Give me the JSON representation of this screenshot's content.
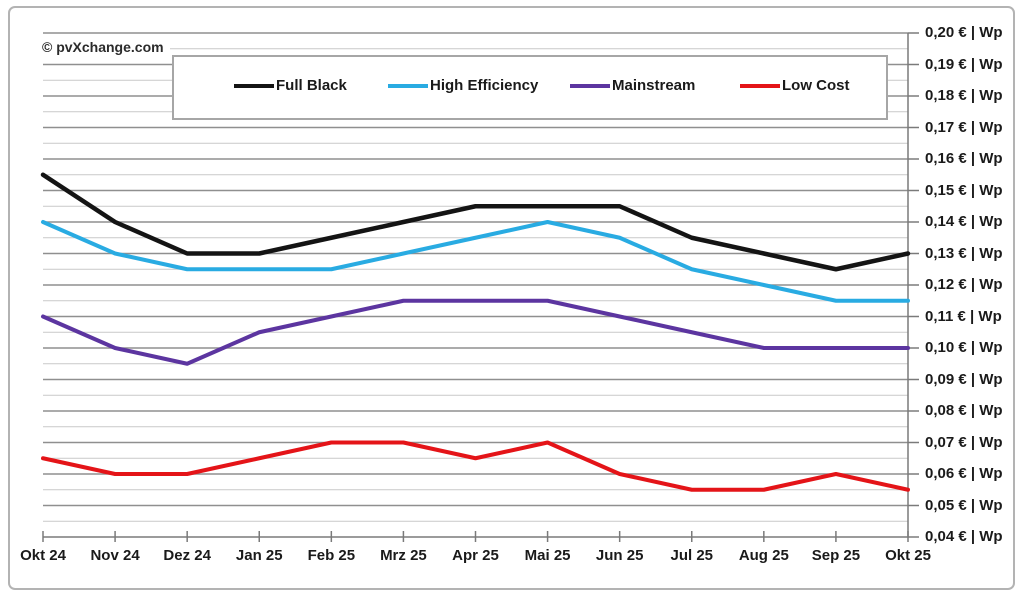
{
  "watermark": "© pvXchange.com",
  "chart_data": {
    "type": "line",
    "title": "",
    "xlabel": "",
    "ylabel": "€ | Wp",
    "categories": [
      "Okt 24",
      "Nov 24",
      "Dez 24",
      "Jan 25",
      "Feb 25",
      "Mrz 25",
      "Apr 25",
      "Mai 25",
      "Jun 25",
      "Jul 25",
      "Aug 25",
      "Sep 25",
      "Okt 25"
    ],
    "series": [
      {
        "name": "Full Black",
        "color": "#141414",
        "values": [
          0.155,
          0.14,
          0.13,
          0.13,
          0.135,
          0.14,
          0.145,
          0.145,
          0.145,
          0.135,
          0.13,
          0.125,
          0.13
        ]
      },
      {
        "name": "High Efficiency",
        "color": "#29abe2",
        "values": [
          0.14,
          0.13,
          0.125,
          0.125,
          0.125,
          0.13,
          0.135,
          0.14,
          0.135,
          0.125,
          0.12,
          0.115,
          0.115
        ]
      },
      {
        "name": "Mainstream",
        "color": "#5c35a0",
        "values": [
          0.11,
          0.1,
          0.095,
          0.105,
          0.11,
          0.115,
          0.115,
          0.115,
          0.11,
          0.105,
          0.1,
          0.1,
          0.1
        ]
      },
      {
        "name": "Low Cost",
        "color": "#e41418",
        "values": [
          0.065,
          0.06,
          0.06,
          0.065,
          0.07,
          0.07,
          0.065,
          0.07,
          0.06,
          0.055,
          0.055,
          0.06,
          0.055
        ]
      }
    ],
    "ylim": [
      0.04,
      0.2
    ],
    "y_major_step": 0.01,
    "y_minor_step": 0.005,
    "y_tick_labels": [
      "0,20 € | Wp",
      "0,19 € | Wp",
      "0,18 € | Wp",
      "0,17 € | Wp",
      "0,16 € | Wp",
      "0,15 € | Wp",
      "0,14 € | Wp",
      "0,13 € | Wp",
      "0,12 € | Wp",
      "0,11 € | Wp",
      "0,10 € | Wp",
      "0,09 € | Wp",
      "0,08 € | Wp",
      "0,07 € | Wp",
      "0,06 € | Wp",
      "0,05 € | Wp",
      "0,04 € | Wp"
    ],
    "legend_position": "top",
    "grid": "horizontal, major + minor",
    "colors": {
      "major_grid": "#8f8f8f",
      "minor_grid": "#c9c9c9",
      "axis": "#7a7a7a",
      "text": "#1a1a1a"
    }
  }
}
